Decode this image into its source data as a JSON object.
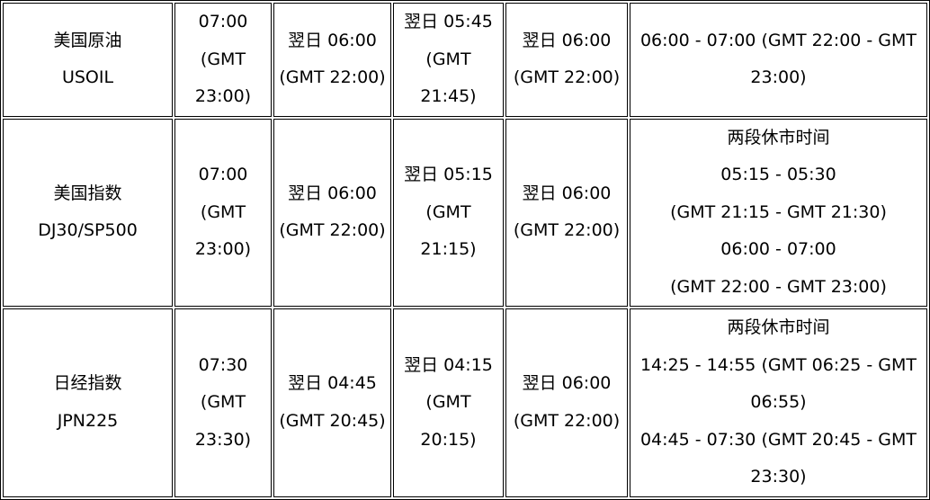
{
  "rows": [
    {
      "product": [
        "美国原油",
        "USOIL"
      ],
      "c1": [
        "07:00",
        "(GMT",
        "23:00)"
      ],
      "c2": [
        "翌日 06:00",
        "(GMT 22:00)"
      ],
      "c3": [
        "翌日 05:45",
        "(GMT",
        "21:45)"
      ],
      "c4": [
        "翌日 06:00",
        "(GMT 22:00)"
      ],
      "c5": [
        "06:00 - 07:00 (GMT 22:00 - GMT",
        "23:00)"
      ]
    },
    {
      "product": [
        "美国指数",
        "DJ30/SP500"
      ],
      "c1": [
        "07:00",
        "(GMT",
        "23:00)"
      ],
      "c2": [
        "翌日 06:00",
        "(GMT 22:00)"
      ],
      "c3": [
        "翌日 05:15",
        "(GMT",
        "21:15)"
      ],
      "c4": [
        "翌日 06:00",
        "(GMT 22:00)"
      ],
      "c5": [
        "两段休市时间",
        "05:15 - 05:30",
        "(GMT 21:15 - GMT 21:30)",
        "06:00 - 07:00",
        "(GMT 22:00 - GMT 23:00)"
      ]
    },
    {
      "product": [
        "日经指数",
        "JPN225"
      ],
      "c1": [
        "07:30",
        "(GMT",
        "23:30)"
      ],
      "c2": [
        "翌日 04:45",
        "(GMT 20:45)"
      ],
      "c3": [
        "翌日 04:15",
        "(GMT",
        "20:15)"
      ],
      "c4": [
        "翌日 06:00",
        "(GMT 22:00)"
      ],
      "c5": [
        "两段休市时间",
        "14:25 - 14:55 (GMT 06:25 - GMT",
        "06:55)",
        "04:45 - 07:30 (GMT 20:45 - GMT",
        "23:30)"
      ]
    }
  ]
}
